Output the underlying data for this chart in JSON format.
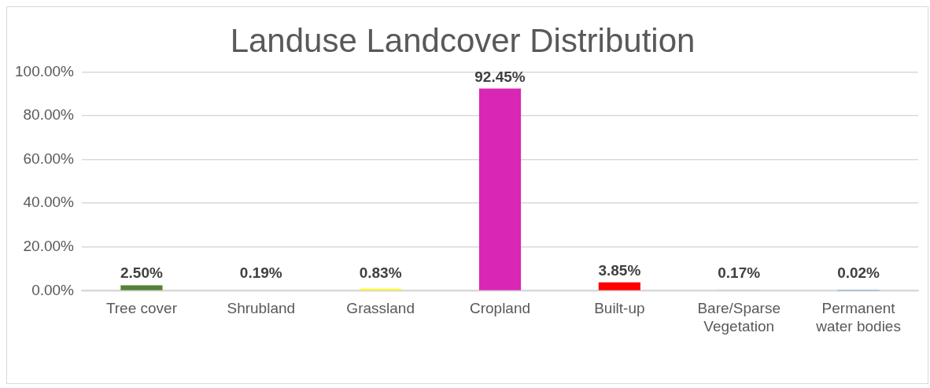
{
  "chart_data": {
    "type": "bar",
    "title": "Landuse Landcover Distribution",
    "categories": [
      "Tree cover",
      "Shrubland",
      "Grassland",
      "Cropland",
      "Built-up",
      "Bare/Sparse Vegetation",
      "Permanent water bodies"
    ],
    "values": [
      2.5,
      0.19,
      0.83,
      92.45,
      3.85,
      0.17,
      0.02
    ],
    "colors": [
      "#548235",
      "#ffc000",
      "#ffff00",
      "#d926b4",
      "#ff0000",
      "#a5a5a5",
      "#0070c0"
    ],
    "value_labels": [
      "2.50%",
      "0.19%",
      "0.83%",
      "92.45%",
      "3.85%",
      "0.17%",
      "0.02%"
    ],
    "ylim": [
      0,
      100
    ],
    "yticks": [
      {
        "value": 0,
        "label": "0.00%"
      },
      {
        "value": 20,
        "label": "20.00%"
      },
      {
        "value": 40,
        "label": "40.00%"
      },
      {
        "value": 60,
        "label": "60.00%"
      },
      {
        "value": 80,
        "label": "80.00%"
      },
      {
        "value": 100,
        "label": "100.00%"
      }
    ],
    "grid": "y",
    "legend": false
  }
}
